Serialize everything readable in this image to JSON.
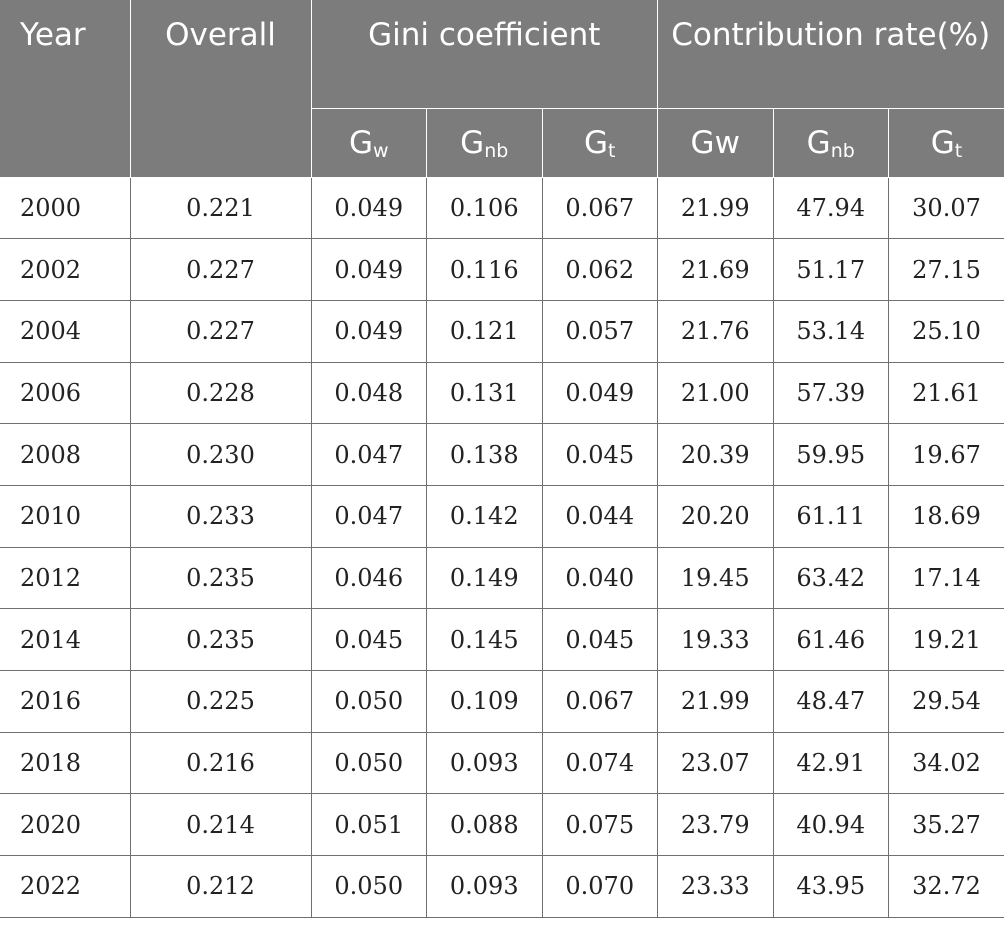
{
  "headers": {
    "year": "Year",
    "overall": "Overall",
    "gini": "Gini coefficient",
    "contribution": "Contribution rate(%)",
    "sub": [
      {
        "base": "G",
        "sub": "w"
      },
      {
        "base": "G",
        "sub": "nb"
      },
      {
        "base": "G",
        "sub": "t"
      },
      {
        "base": "Gw",
        "sub": ""
      },
      {
        "base": "G",
        "sub": "nb"
      },
      {
        "base": "G",
        "sub": "t"
      }
    ]
  },
  "rows": [
    [
      "2000",
      "0.221",
      "0.049",
      "0.106",
      "0.067",
      "21.99",
      "47.94",
      "30.07"
    ],
    [
      "2002",
      "0.227",
      "0.049",
      "0.116",
      "0.062",
      "21.69",
      "51.17",
      "27.15"
    ],
    [
      "2004",
      "0.227",
      "0.049",
      "0.121",
      "0.057",
      "21.76",
      "53.14",
      "25.10"
    ],
    [
      "2006",
      "0.228",
      "0.048",
      "0.131",
      "0.049",
      "21.00",
      "57.39",
      "21.61"
    ],
    [
      "2008",
      "0.230",
      "0.047",
      "0.138",
      "0.045",
      "20.39",
      "59.95",
      "19.67"
    ],
    [
      "2010",
      "0.233",
      "0.047",
      "0.142",
      "0.044",
      "20.20",
      "61.11",
      "18.69"
    ],
    [
      "2012",
      "0.235",
      "0.046",
      "0.149",
      "0.040",
      "19.45",
      "63.42",
      "17.14"
    ],
    [
      "2014",
      "0.235",
      "0.045",
      "0.145",
      "0.045",
      "19.33",
      "61.46",
      "19.21"
    ],
    [
      "2016",
      "0.225",
      "0.050",
      "0.109",
      "0.067",
      "21.99",
      "48.47",
      "29.54"
    ],
    [
      "2018",
      "0.216",
      "0.050",
      "0.093",
      "0.074",
      "23.07",
      "42.91",
      "34.02"
    ],
    [
      "2020",
      "0.214",
      "0.051",
      "0.088",
      "0.075",
      "23.79",
      "40.94",
      "35.27"
    ],
    [
      "2022",
      "0.212",
      "0.050",
      "0.093",
      "0.070",
      "23.33",
      "43.95",
      "32.72"
    ]
  ],
  "colors": {
    "header_bg": "#7b7c7b",
    "header_text": "#ffffff",
    "border": "#6f6f6f"
  }
}
